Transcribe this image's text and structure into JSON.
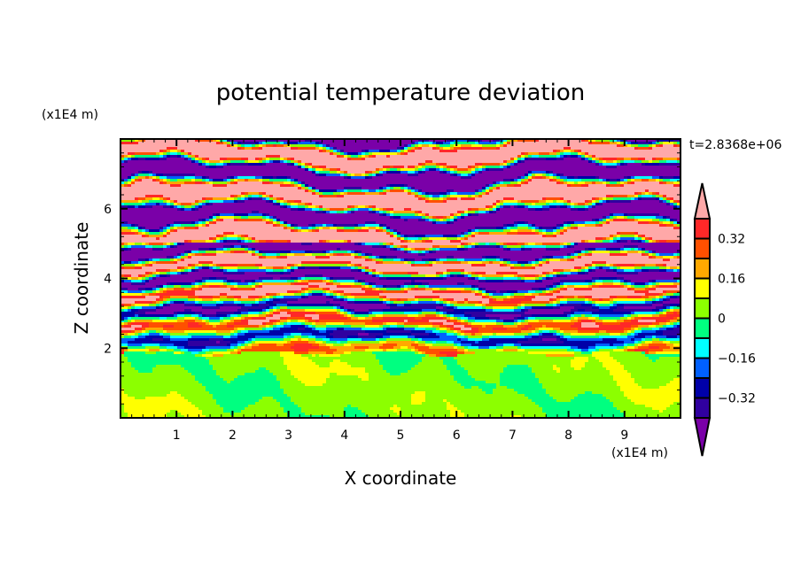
{
  "chart_data": {
    "type": "heatmap",
    "title": "potential temperature deviation",
    "xlabel": "X coordinate",
    "ylabel": "Z coordinate",
    "x_unit": "(x1E4 m)",
    "y_unit": "(x1E4 m)",
    "time_label": "t=2.8368e+06",
    "xlim": [
      0,
      10
    ],
    "ylim": [
      0,
      8
    ],
    "x_ticks": [
      1,
      2,
      3,
      4,
      5,
      6,
      7,
      8,
      9
    ],
    "y_ticks": [
      2,
      4,
      6
    ],
    "levels": [
      -0.4,
      -0.32,
      -0.24,
      -0.16,
      -0.08,
      0,
      0.08,
      0.16,
      0.24,
      0.32,
      0.4
    ],
    "colorbar_labels": [
      {
        "value": 0.32,
        "text": "0.32"
      },
      {
        "value": 0.16,
        "text": "0.16"
      },
      {
        "value": 0,
        "text": "0"
      },
      {
        "value": -0.16,
        "text": "−0.16"
      },
      {
        "value": -0.32,
        "text": "−0.32"
      }
    ],
    "colors": [
      "#7a00a8",
      "#3000a0",
      "#0000a8",
      "#0060ff",
      "#00ffff",
      "#00ff80",
      "#8cff00",
      "#ffff00",
      "#ffa800",
      "#ff5000",
      "#ff2828",
      "#ffa8a8"
    ],
    "field_description_regions": [
      {
        "z_range": [
          0,
          1.9
        ],
        "value_range": [
          0,
          0.08
        ]
      },
      {
        "z_range": [
          1.9,
          5
        ],
        "value_range": [
          -0.4,
          0.4
        ]
      },
      {
        "z_range": [
          5,
          8
        ],
        "value_range": [
          -0.5,
          0.5
        ]
      }
    ]
  }
}
